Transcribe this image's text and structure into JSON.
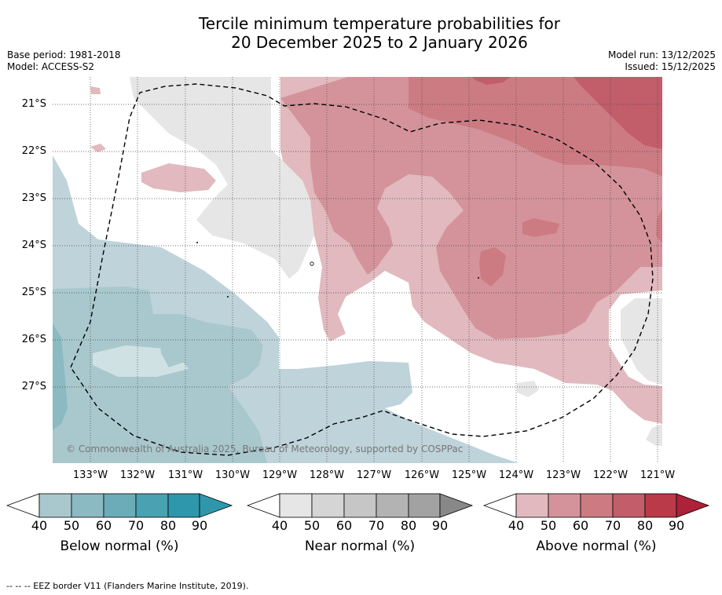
{
  "title": {
    "line1": "Tercile minimum temperature probabilities for",
    "line2": "20 December 2025 to 2 January 2026"
  },
  "meta": {
    "base_period": "Base period: 1981-2018",
    "model": "Model: ACCESS-S2",
    "model_run": "Model run: 13/12/2025",
    "issued": "Issued: 15/12/2025"
  },
  "map": {
    "lat_labels": [
      "21°S",
      "22°S",
      "23°S",
      "24°S",
      "25°S",
      "26°S",
      "27°S"
    ],
    "lon_labels": [
      "133°W",
      "132°W",
      "131°W",
      "130°W",
      "129°W",
      "128°W",
      "127°W",
      "126°W",
      "125°W",
      "124°W",
      "123°W",
      "122°W",
      "121°W"
    ],
    "copyright": "© Commonwealth of Australia 2025, Bureau of Meteorology, supported by COSPPac"
  },
  "colorbars": {
    "ticks": [
      "40",
      "50",
      "60",
      "70",
      "80",
      "90"
    ],
    "below": {
      "label": "Below normal (%)",
      "colors": [
        "#bfd3da",
        "#a9c8cd",
        "#8bbac2",
        "#6cacb9",
        "#4aa1b2",
        "#2e97ab"
      ]
    },
    "near": {
      "label": "Near normal (%)",
      "colors": [
        "#e6e6e6",
        "#d5d5d5",
        "#c6c6c6",
        "#b3b3b3",
        "#a2a2a2",
        "#888888"
      ]
    },
    "above": {
      "label": "Above normal (%)",
      "colors": [
        "#e1b9be",
        "#d4939b",
        "#cc7b83",
        "#c25d6a",
        "#bb3a4a",
        "#ad2139"
      ]
    }
  },
  "footer": {
    "eez": "--  --  -- EEZ border V11 (Flanders Marine Institute, 2019)."
  }
}
